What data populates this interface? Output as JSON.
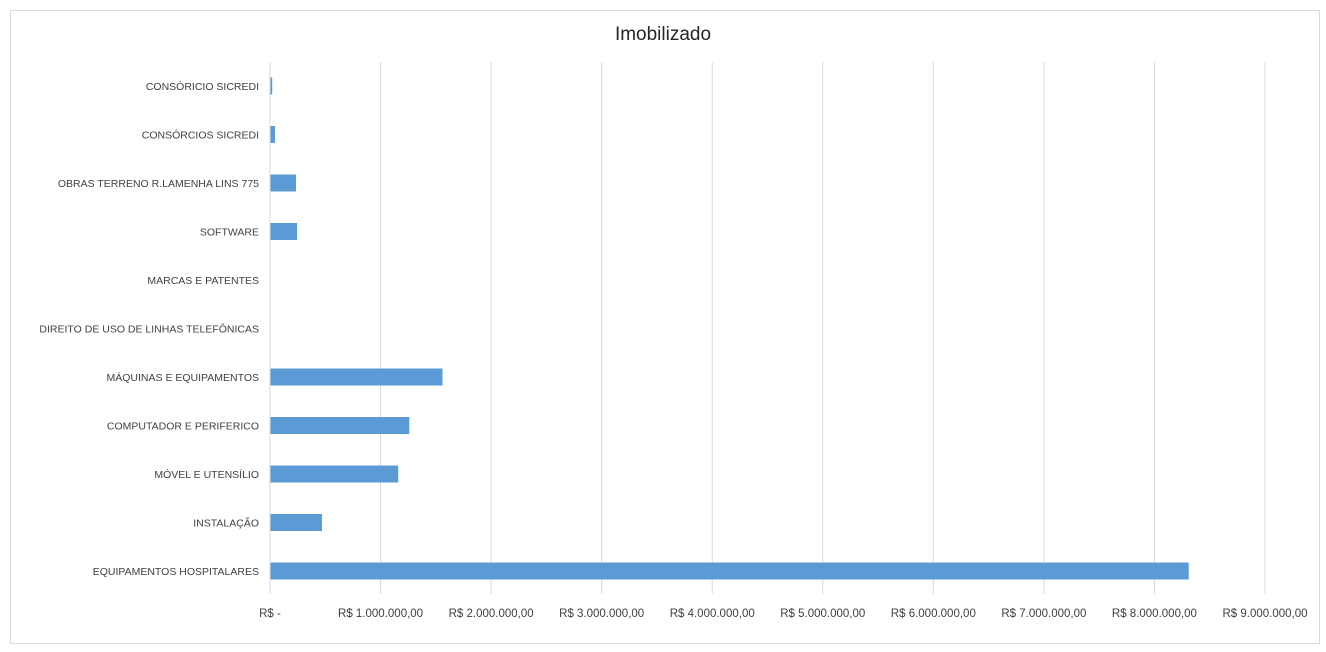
{
  "chart_data": {
    "type": "bar",
    "orientation": "horizontal",
    "title": "Imobilizado",
    "xlabel": "",
    "ylabel": "",
    "categories": [
      "CONSÓRICIO SICREDI",
      "CONSÓRCIOS SICREDI",
      "OBRAS TERRENO R.LAMENHA LINS 775",
      "SOFTWARE",
      "MARCAS E PATENTES",
      "DIREITO DE USO DE LINHAS TELEFÔNICAS",
      "MÁQUINAS E EQUIPAMENTOS",
      "COMPUTADOR E PERIFERICO",
      "MÓVEL E UTENSÍLIO",
      "INSTALAÇÃO",
      "EQUIPAMENTOS HOSPITALARES"
    ],
    "values": [
      20000,
      45000,
      235000,
      245000,
      0,
      0,
      1560000,
      1260000,
      1160000,
      470000,
      8310000
    ],
    "xlim": [
      0,
      9000000
    ],
    "xticks": [
      0,
      1000000,
      2000000,
      3000000,
      4000000,
      5000000,
      6000000,
      7000000,
      8000000,
      9000000
    ],
    "xtick_labels": [
      "R$ -",
      "R$ 1.000.000,00",
      "R$ 2.000.000,00",
      "R$ 3.000.000,00",
      "R$ 4.000.000,00",
      "R$ 5.000.000,00",
      "R$ 6.000.000,00",
      "R$ 7.000.000,00",
      "R$ 8.000.000,00",
      "R$ 9.000.000,00"
    ],
    "grid": "vertical",
    "legend": "none",
    "bar_color": "#5b9bd5",
    "gridline_color": "#d9d9d9"
  }
}
